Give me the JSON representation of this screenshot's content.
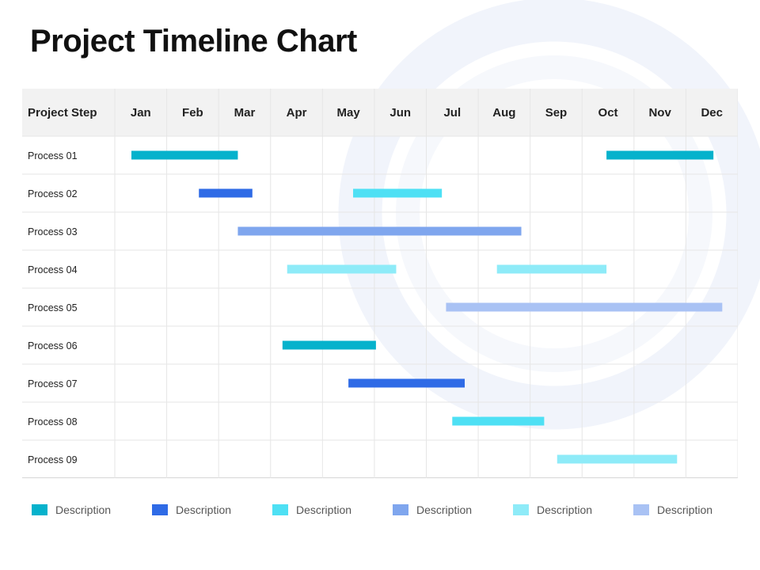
{
  "title": "Project Timeline Chart",
  "colors": {
    "c1": "#06B2CC",
    "c2": "#2F6BE6",
    "c3": "#4EE0F4",
    "c4": "#7FA6EE",
    "c5": "#8EEBF8",
    "c6": "#A9C2F4"
  },
  "chart_data": {
    "type": "gantt",
    "row_header": "Project Step",
    "months": [
      "Jan",
      "Feb",
      "Mar",
      "Apr",
      "May",
      "Jun",
      "Jul",
      "Aug",
      "Sep",
      "Oct",
      "Nov",
      "Dec"
    ],
    "tasks": [
      {
        "name": "Process 01",
        "bars": [
          {
            "start": 0.32,
            "end": 2.37,
            "color": "c1"
          },
          {
            "start": 9.47,
            "end": 11.53,
            "color": "c1"
          }
        ]
      },
      {
        "name": "Process 02",
        "bars": [
          {
            "start": 1.62,
            "end": 2.65,
            "color": "c2"
          },
          {
            "start": 4.59,
            "end": 6.3,
            "color": "c3"
          }
        ]
      },
      {
        "name": "Process 03",
        "bars": [
          {
            "start": 2.37,
            "end": 7.83,
            "color": "c4"
          }
        ]
      },
      {
        "name": "Process 04",
        "bars": [
          {
            "start": 3.32,
            "end": 5.42,
            "color": "c5"
          },
          {
            "start": 7.36,
            "end": 9.47,
            "color": "c5"
          }
        ]
      },
      {
        "name": "Process 05",
        "bars": [
          {
            "start": 6.38,
            "end": 11.7,
            "color": "c6"
          }
        ]
      },
      {
        "name": "Process 06",
        "bars": [
          {
            "start": 3.23,
            "end": 5.03,
            "color": "c1"
          }
        ]
      },
      {
        "name": "Process 07",
        "bars": [
          {
            "start": 4.5,
            "end": 6.74,
            "color": "c2"
          }
        ]
      },
      {
        "name": "Process 08",
        "bars": [
          {
            "start": 6.5,
            "end": 8.27,
            "color": "c3"
          }
        ]
      },
      {
        "name": "Process 09",
        "bars": [
          {
            "start": 8.52,
            "end": 10.83,
            "color": "c5"
          }
        ]
      }
    ],
    "legend": [
      {
        "label": "Description",
        "color": "c1"
      },
      {
        "label": "Description",
        "color": "c2"
      },
      {
        "label": "Description",
        "color": "c3"
      },
      {
        "label": "Description",
        "color": "c4"
      },
      {
        "label": "Description",
        "color": "c5"
      },
      {
        "label": "Description",
        "color": "c6"
      }
    ],
    "grid": true,
    "legend_position": "bottom"
  }
}
